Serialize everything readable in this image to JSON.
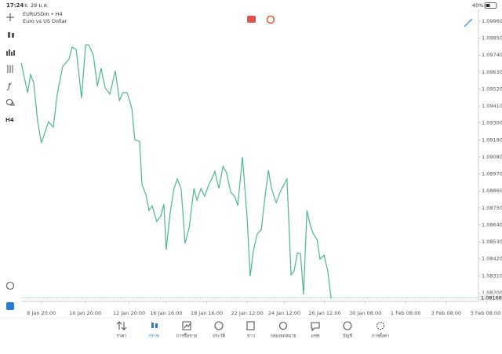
{
  "status_bar": {
    "time": "17:24",
    "date": "จ. 29 ม.ค.",
    "battery": "40%"
  },
  "toolbar": {
    "timeframe": "H4"
  },
  "nav": {
    "items": [
      "ราคา",
      "กราฟ",
      "การซื้อขาย",
      "ประวัติ",
      "ข่าว",
      "กล่องจดหมาย",
      "แชท",
      "บัญชี",
      "การตั้งค่า"
    ],
    "active": 1
  },
  "chart_data": {
    "type": "line",
    "title": "EURUSDm • H4",
    "subtitle": "Euro vs US Dollar",
    "color": "#4cb888",
    "x": [
      0,
      1.9,
      2.8,
      3.7,
      4.9,
      6.0,
      8.1,
      9.5,
      10.7,
      12.3,
      14.2,
      15.1,
      16.3,
      17.9,
      19.1,
      20.0,
      21.4,
      22.6,
      23.7,
      24.9,
      26.3,
      27.9,
      29.1,
      30.2,
      31.4,
      32.8,
      33.7,
      35.1,
      35.8,
      37.0,
      37.9,
      38.8,
      40.2,
      41.4,
      42.3,
      43.0,
      44.2,
      45.3,
      46.3,
      47.4,
      48.6,
      49.8,
      51.2,
      52.1,
      53.3,
      54.4,
      55.6,
      56.5,
      57.4,
      58.6,
      59.8,
      60.9,
      62.1,
      63.3,
      64.2,
      65.6,
      67.0,
      67.9,
      68.8,
      70.0,
      71.2,
      72.3,
      73.3,
      74.2,
      75.6,
      76.7,
      77.9,
      78.8,
      80.0,
      80.9,
      81.9,
      82.8,
      83.7,
      84.7,
      85.6,
      86.5,
      87.7,
      88.6,
      89.8,
      90.9,
      91.9
    ],
    "values": [
      1.0969,
      1.09497,
      1.09614,
      1.09563,
      1.09308,
      1.09171,
      1.09308,
      1.09273,
      1.09487,
      1.09665,
      1.09716,
      1.09792,
      1.09777,
      1.09461,
      1.09807,
      1.09807,
      1.09741,
      1.09538,
      1.09655,
      1.09527,
      1.09487,
      1.09639,
      1.09446,
      1.09497,
      1.09497,
      1.09395,
      1.09191,
      1.09181,
      1.08901,
      1.08835,
      1.08733,
      1.08764,
      1.08662,
      1.08698,
      1.08774,
      1.08479,
      1.08723,
      1.08876,
      1.08937,
      1.08876,
      1.0852,
      1.08621,
      1.08876,
      1.08799,
      1.08876,
      1.08825,
      1.08901,
      1.08937,
      1.08988,
      1.08876,
      1.09018,
      1.08978,
      1.0885,
      1.08825,
      1.08764,
      1.09079,
      1.08682,
      1.08306,
      1.08469,
      1.08581,
      1.08611,
      1.08825,
      1.08993,
      1.08876,
      1.08784,
      1.0885,
      1.08901,
      1.08937,
      1.08316,
      1.08341,
      1.08458,
      1.08453,
      1.08189,
      1.08733,
      1.08647,
      1.08586,
      1.08545,
      1.08418,
      1.08443,
      1.08341,
      1.08163
    ],
    "current_price": 1.08168,
    "xlim": [
      0,
      143
    ],
    "xticks": [
      {
        "value": 6,
        "label": "8 Jan 20:00"
      },
      {
        "value": 19,
        "label": "10 Jan 20:00"
      },
      {
        "value": 32,
        "label": "12 Jan 20:00"
      },
      {
        "value": 43,
        "label": "16 Jan 16:00"
      },
      {
        "value": 55,
        "label": "18 Jan 16:00"
      },
      {
        "value": 67,
        "label": "22 Jan 12:00"
      },
      {
        "value": 78,
        "label": "24 Jan 12:00"
      },
      {
        "value": 90,
        "label": "26 Jan 12:00"
      },
      {
        "value": 102,
        "label": "30 Jan 08:00"
      },
      {
        "value": 114,
        "label": "1 Feb 08:00"
      },
      {
        "value": 126,
        "label": "3 Feb 08:00"
      },
      {
        "value": 138,
        "label": "5 Feb 08:00"
      }
    ],
    "ylim": [
      1.08144,
      1.10021
    ],
    "yticks": [
      {
        "value": 1.0996,
        "label": "1.09960"
      },
      {
        "value": 1.0985,
        "label": "1.09850"
      },
      {
        "value": 1.0974,
        "label": "1.09740"
      },
      {
        "value": 1.0963,
        "label": "1.09630"
      },
      {
        "value": 1.0952,
        "label": "1.09520"
      },
      {
        "value": 1.0941,
        "label": "1.09410"
      },
      {
        "value": 1.093,
        "label": "1.09300"
      },
      {
        "value": 1.0919,
        "label": "1.09190"
      },
      {
        "value": 1.0908,
        "label": "1.09080"
      },
      {
        "value": 1.0897,
        "label": "1.08970"
      },
      {
        "value": 1.0886,
        "label": "1.08860"
      },
      {
        "value": 1.0875,
        "label": "1.08750"
      },
      {
        "value": 1.0864,
        "label": "1.08640"
      },
      {
        "value": 1.0853,
        "label": "1.08530"
      },
      {
        "value": 1.0842,
        "label": "1.08420"
      },
      {
        "value": 1.0831,
        "label": "1.08310"
      },
      {
        "value": 1.082,
        "label": "1.08200"
      }
    ]
  }
}
